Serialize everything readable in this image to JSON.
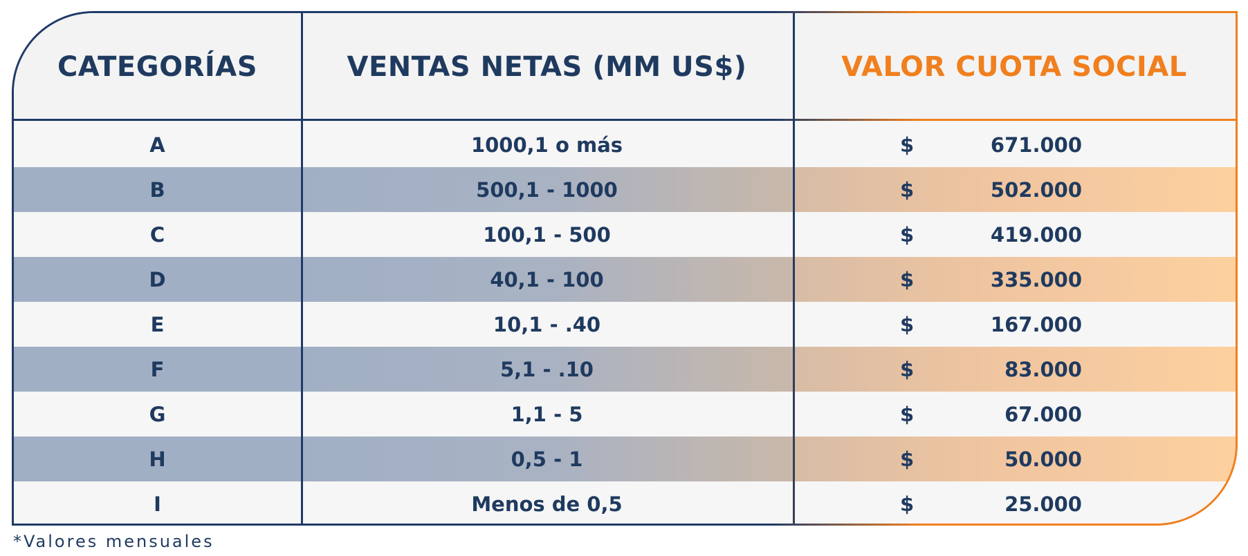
{
  "table": {
    "headers": {
      "category": "CATEGORÍAS",
      "sales": "VENTAS NETAS (MM US$)",
      "fee": "VALOR CUOTA SOCIAL"
    },
    "currency_symbol": "$",
    "rows": [
      {
        "category": "A",
        "sales": "1000,1 o más",
        "fee": "671.000"
      },
      {
        "category": "B",
        "sales": "500,1 - 1000",
        "fee": "502.000"
      },
      {
        "category": "C",
        "sales": "100,1 - 500",
        "fee": "419.000"
      },
      {
        "category": "D",
        "sales": "40,1 - 100",
        "fee": "335.000"
      },
      {
        "category": "E",
        "sales": "10,1 - .40",
        "fee": "167.000"
      },
      {
        "category": "F",
        "sales": "5,1 - .10",
        "fee": "83.000"
      },
      {
        "category": "G",
        "sales": "1,1 - 5",
        "fee": "67.000"
      },
      {
        "category": "H",
        "sales": "0,5 - 1",
        "fee": "50.000"
      },
      {
        "category": "I",
        "sales": "Menos de 0,5",
        "fee": "25.000"
      }
    ]
  },
  "footnote": "*Valores mensuales",
  "colors": {
    "navy": "#1f3a5f",
    "orange": "#f07f1e",
    "row_shade": "#a1afc4",
    "row_shade_orange": "#fdd09f"
  }
}
